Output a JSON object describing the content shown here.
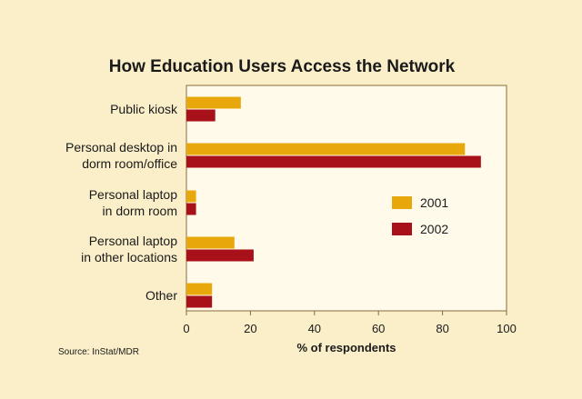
{
  "colors": {
    "background": "#fbefc9",
    "plot_background": "#fffaea",
    "series_2001": "#e8a80c",
    "series_2002": "#a8101a",
    "axis": "#8a6a3a"
  },
  "source": "Source: InStat/MDR",
  "chart_data": {
    "type": "bar",
    "orientation": "horizontal",
    "title": "How Education Users Access the Network",
    "xlabel": "% of respondents",
    "ylabel": "",
    "xlim": [
      0,
      100
    ],
    "ticks": [
      "0",
      "20",
      "40",
      "60",
      "80",
      "100"
    ],
    "grid": false,
    "legend_position": "right",
    "categories": [
      [
        "Public kiosk"
      ],
      [
        "Personal desktop in",
        "dorm room/office"
      ],
      [
        "Personal laptop",
        "in dorm room"
      ],
      [
        "Personal laptop",
        "in other locations"
      ],
      [
        "Other"
      ]
    ],
    "series": [
      {
        "name": "2001",
        "values": [
          17,
          87,
          3,
          15,
          8
        ]
      },
      {
        "name": "2002",
        "values": [
          9,
          92,
          3,
          21,
          8
        ]
      }
    ]
  }
}
